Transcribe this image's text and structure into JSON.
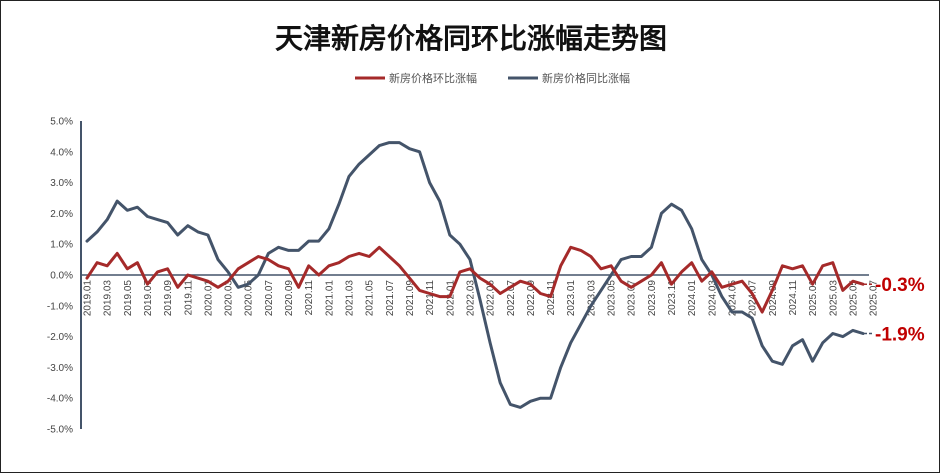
{
  "chart_data": {
    "type": "line",
    "title": "天津新房价格同环比涨幅走势图",
    "xlabel": "",
    "ylabel": "",
    "ylim": [
      -5,
      5
    ],
    "y_ticks": [
      "5.0%",
      "4.0%",
      "3.0%",
      "2.0%",
      "1.0%",
      "0.0%",
      "-1.0%",
      "-2.0%",
      "-3.0%",
      "-4.0%",
      "-5.0%"
    ],
    "x_tick_labels": [
      "2019.01",
      "2019.03",
      "2019.05",
      "2019.07",
      "2019.09",
      "2019.11",
      "2020.01",
      "2020.03",
      "2020.05",
      "2020.07",
      "2020.09",
      "2020.11",
      "2021.01",
      "2021.03",
      "2021.05",
      "2021.07",
      "2021.09",
      "2021.11",
      "2022.01",
      "2022.03",
      "2022.05",
      "2022.07",
      "2022.09",
      "2022.11",
      "2023.01",
      "2023.03",
      "2023.05",
      "2023.07",
      "2023.09",
      "2023.11",
      "2024.01",
      "2024.03",
      "2024.05",
      "2024.07",
      "2024.09",
      "2024.11",
      "2025.01",
      "2025.03",
      "2025.05",
      "2025.07"
    ],
    "x_start": "2019.01",
    "x_step": "1 month",
    "grid": false,
    "legend_position": "top-center",
    "series": [
      {
        "name": "新房价格环比涨幅",
        "color": "#a52a2a",
        "values": [
          -0.1,
          0.4,
          0.3,
          0.7,
          0.2,
          0.4,
          -0.3,
          0.1,
          0.2,
          -0.4,
          0.0,
          -0.1,
          -0.2,
          -0.4,
          -0.2,
          0.2,
          0.4,
          0.6,
          0.5,
          0.3,
          0.2,
          -0.4,
          0.3,
          0.0,
          0.3,
          0.4,
          0.6,
          0.7,
          0.6,
          0.9,
          0.6,
          0.3,
          -0.1,
          -0.5,
          -0.6,
          -0.7,
          -0.7,
          0.1,
          0.2,
          -0.1,
          -0.3,
          -0.6,
          -0.4,
          -0.2,
          -0.3,
          -0.6,
          -0.7,
          0.3,
          0.9,
          0.8,
          0.6,
          0.2,
          0.3,
          -0.2,
          -0.4,
          -0.2,
          0.0,
          0.4,
          -0.3,
          0.1,
          0.4,
          -0.2,
          0.1,
          -0.4,
          -0.3,
          -0.2,
          -0.6,
          -1.2,
          -0.5,
          0.3,
          0.2,
          0.3,
          -0.3,
          0.3,
          0.4,
          -0.5,
          -0.2,
          -0.3
        ],
        "end_label": "-0.3%"
      },
      {
        "name": "新房价格同比涨幅",
        "color": "#44546a",
        "values": [
          1.1,
          1.4,
          1.8,
          2.4,
          2.1,
          2.2,
          1.9,
          1.8,
          1.7,
          1.3,
          1.6,
          1.4,
          1.3,
          0.5,
          0.1,
          -0.4,
          -0.3,
          0.0,
          0.7,
          0.9,
          0.8,
          0.8,
          1.1,
          1.1,
          1.5,
          2.3,
          3.2,
          3.6,
          3.9,
          4.2,
          4.3,
          4.3,
          4.1,
          4.0,
          3.0,
          2.4,
          1.3,
          1.0,
          0.5,
          -0.8,
          -2.2,
          -3.5,
          -4.2,
          -4.3,
          -4.1,
          -4.0,
          -4.0,
          -3.0,
          -2.2,
          -1.6,
          -1.0,
          -0.5,
          0.0,
          0.5,
          0.6,
          0.6,
          0.9,
          2.0,
          2.3,
          2.1,
          1.5,
          0.5,
          0.0,
          -0.7,
          -1.2,
          -1.2,
          -1.4,
          -2.3,
          -2.8,
          -2.9,
          -2.3,
          -2.1,
          -2.8,
          -2.2,
          -1.9,
          -2.0,
          -1.8,
          -1.9
        ],
        "end_label": "-1.9%"
      }
    ]
  }
}
